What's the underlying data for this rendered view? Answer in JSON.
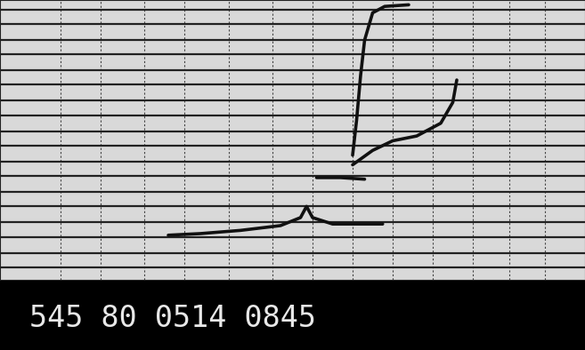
{
  "chart_data": {
    "type": "line",
    "xlim": [
      0,
      14.6
    ],
    "ylim": [
      0,
      17.5
    ],
    "xticks": [
      1.5,
      2.5,
      3.6,
      4.6,
      5.7,
      6.8,
      7.8,
      8.8,
      9.8,
      10.8,
      11.8,
      12.7,
      13.6
    ],
    "yticks": [
      0.8,
      1.7,
      2.7,
      3.6,
      4.6,
      5.5,
      6.5,
      7.4,
      8.4,
      9.3,
      10.3,
      11.2,
      12.2,
      13.1,
      14.1,
      15.0,
      16.0,
      16.9
    ],
    "grid": true,
    "tick_labels": false,
    "color": "#111111",
    "series": [
      {
        "x": [
          4.2,
          5.0,
          6.0,
          7.0,
          7.5,
          7.65,
          7.8,
          8.3,
          9.0,
          9.55
        ],
        "values": [
          2.8,
          2.9,
          3.1,
          3.4,
          3.9,
          4.6,
          3.9,
          3.5,
          3.5,
          3.5
        ]
      },
      {
        "x": [
          7.9,
          8.5,
          9.1
        ],
        "values": [
          6.4,
          6.4,
          6.3
        ]
      },
      {
        "x": [
          8.8,
          9.3,
          9.8,
          10.4,
          11.0,
          11.3,
          11.4
        ],
        "values": [
          7.2,
          8.1,
          8.7,
          9.0,
          9.8,
          11.1,
          12.5
        ]
      },
      {
        "x": [
          8.8,
          8.9,
          9.0,
          9.1,
          9.3,
          9.6,
          10.2
        ],
        "values": [
          7.8,
          10.0,
          12.8,
          15.0,
          16.7,
          17.1,
          17.2
        ]
      }
    ],
    "annotations": [
      "545 80 0514 0845"
    ]
  }
}
